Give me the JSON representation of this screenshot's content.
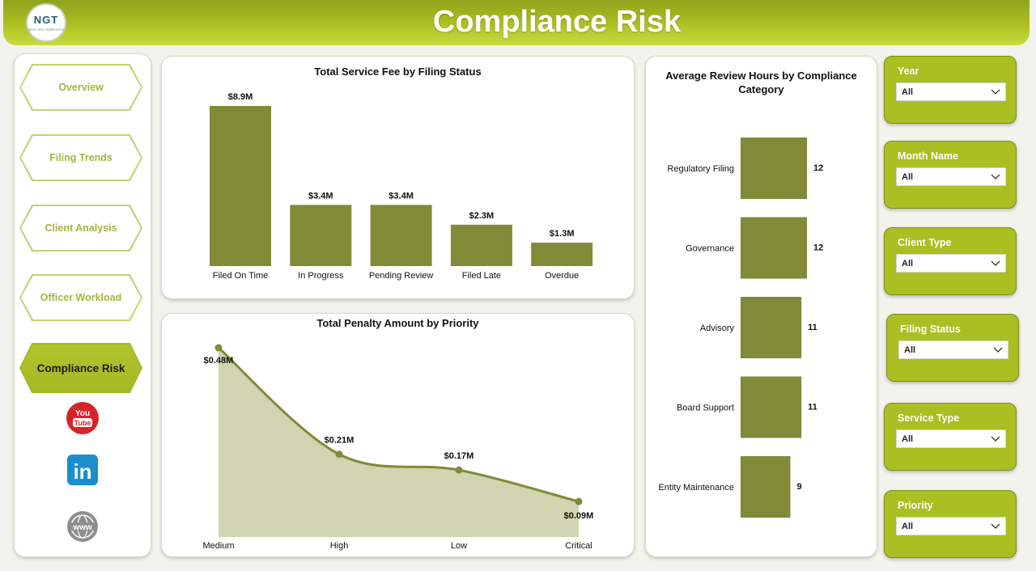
{
  "header": {
    "title": "Compliance Risk",
    "logo_text": "NGT",
    "logo_subtext": "NEXT GEN TEMPLATES"
  },
  "nav": {
    "items": [
      {
        "label": "Overview"
      },
      {
        "label": "Filing Trends"
      },
      {
        "label": "Client Analysis"
      },
      {
        "label": "Officer Workload"
      },
      {
        "label": "Compliance Risk"
      }
    ],
    "active": "Compliance Risk",
    "social": {
      "youtube_top": "You",
      "youtube_bottom": "Tube",
      "linkedin": "in",
      "web": "www"
    }
  },
  "colors": {
    "accent": "#a9bf22",
    "bar": "#818a37",
    "area_fill": "#d0d4b1",
    "line": "#818a37"
  },
  "slicers": [
    {
      "label": "Year",
      "value": "All"
    },
    {
      "label": "Month Name",
      "value": "All"
    },
    {
      "label": "Client Type",
      "value": "All"
    },
    {
      "label": "Filing Status",
      "value": "All"
    },
    {
      "label": "Service Type",
      "value": "All"
    },
    {
      "label": "Priority",
      "value": "All"
    }
  ],
  "chart_data": [
    {
      "type": "bar",
      "title": "Total Service Fee by Filing Status",
      "categories": [
        "Filed On Time",
        "In Progress",
        "Pending Review",
        "Filed Late",
        "Overdue"
      ],
      "values": [
        8.9,
        3.4,
        3.4,
        2.3,
        1.3
      ],
      "data_labels": [
        "$8.9M",
        "$3.4M",
        "$3.4M",
        "$2.3M",
        "$1.3M"
      ],
      "xlabel": "",
      "ylabel": "",
      "ylim": [
        0,
        8.9
      ],
      "grid": false
    },
    {
      "type": "area",
      "title": "Total Penalty Amount by Priority",
      "categories": [
        "Medium",
        "High",
        "Low",
        "Critical"
      ],
      "values": [
        0.48,
        0.21,
        0.17,
        0.09
      ],
      "data_labels": [
        "$0.48M",
        "$0.21M",
        "$0.17M",
        "$0.09M"
      ],
      "xlabel": "",
      "ylabel": "",
      "ylim": [
        0,
        0.48
      ],
      "grid": false
    },
    {
      "type": "bar",
      "orientation": "horizontal",
      "title": "Average Review Hours by Compliance Category",
      "categories": [
        "Regulatory Filing",
        "Governance",
        "Advisory",
        "Board Support",
        "Entity Maintenance"
      ],
      "values": [
        12,
        12,
        11,
        11,
        9
      ],
      "data_labels": [
        "12",
        "12",
        "11",
        "11",
        "9"
      ],
      "xlabel": "",
      "ylabel": "",
      "xlim": [
        0,
        12
      ],
      "grid": false
    }
  ]
}
